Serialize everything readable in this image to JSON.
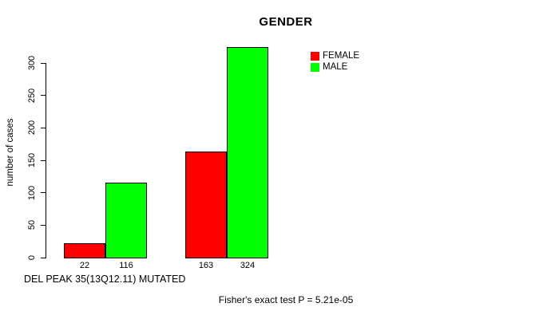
{
  "chart_data": {
    "type": "bar",
    "title": "GENDER",
    "ylabel": "number of cases",
    "xlabel_note": "DEL PEAK 35(13Q12.11) MUTATED",
    "annotation": "Fisher's exact test P = 5.21e-05",
    "ylim": [
      0,
      300
    ],
    "yticks": [
      0,
      50,
      100,
      150,
      200,
      250,
      300
    ],
    "grid": false,
    "legend_position": "top-right",
    "categories": [
      "",
      ""
    ],
    "series": [
      {
        "name": "FEMALE",
        "color": "#ff0000",
        "values": [
          22,
          163
        ]
      },
      {
        "name": "MALE",
        "color": "#00ff00",
        "values": [
          116,
          324
        ]
      }
    ],
    "bar_value_labels": [
      "22",
      "116",
      "163",
      "324"
    ]
  },
  "colors": {
    "background": "#ffffff",
    "axis": "#000000",
    "text": "#000000",
    "bar_border": "#000000"
  }
}
